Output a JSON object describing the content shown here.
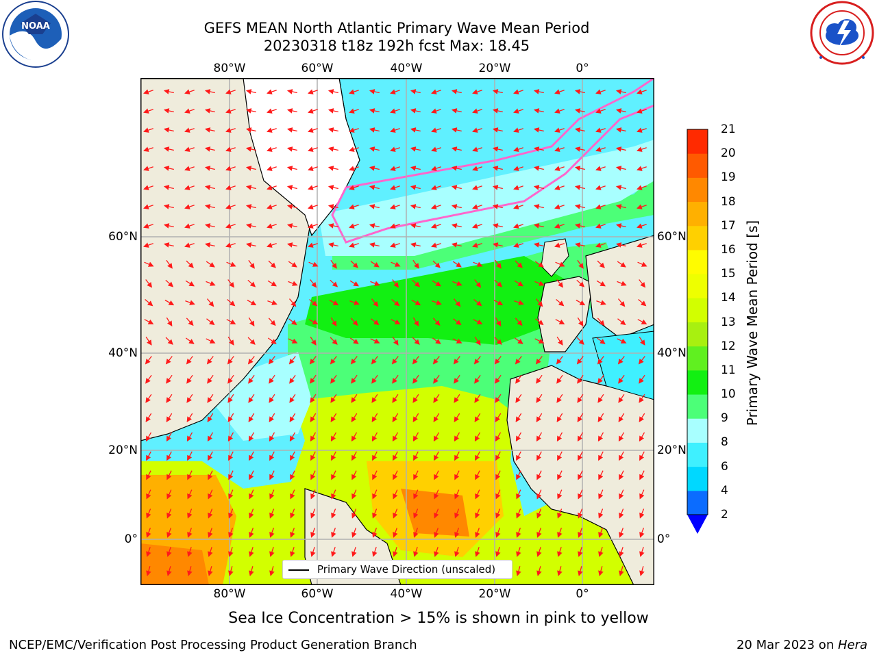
{
  "header": {
    "title_line1": "GEFS MEAN North Atlantic Primary Wave Mean Period",
    "title_line2": "20230318 t18z 192h fcst   Max: 18.45"
  },
  "map": {
    "lon_ticks": [
      "80°W",
      "60°W",
      "40°W",
      "20°W",
      "0°"
    ],
    "lat_ticks": [
      "60°N",
      "40°N",
      "20°N",
      "0°"
    ],
    "gridlines": true,
    "land_color": "#efecdc",
    "ice_colors": [
      "#ff66cc",
      "#ffff00"
    ],
    "legend_label": "Primary Wave Direction (unscaled)"
  },
  "colorbar": {
    "label": "Primary Wave Mean Period [s]",
    "ticks": [
      "2",
      "4",
      "6",
      "8",
      "9",
      "10",
      "11",
      "12",
      "13",
      "14",
      "15",
      "16",
      "17",
      "18",
      "19",
      "20",
      "21"
    ],
    "colors": [
      "#0b6cff",
      "#00d8ff",
      "#3ff0ff",
      "#a8ffff",
      "#4cff78",
      "#12f012",
      "#60f020",
      "#a8f010",
      "#d2ff00",
      "#eeff00",
      "#fffc00",
      "#ffd000",
      "#ffb000",
      "#ff8800",
      "#ff5a00",
      "#ff2a00"
    ],
    "under_color": "#0000ff"
  },
  "caption": "Sea Ice Concentration > 15% is shown in pink to yellow",
  "footer": {
    "left": "NCEP/EMC/Verification Post Processing Product Generation Branch",
    "right_prefix": "20 Mar 2023 on ",
    "right_machine": "Hera"
  },
  "logos": {
    "noaa_text": "NOAA",
    "nws_text": "NATIONAL WEATHER SERVICE"
  }
}
